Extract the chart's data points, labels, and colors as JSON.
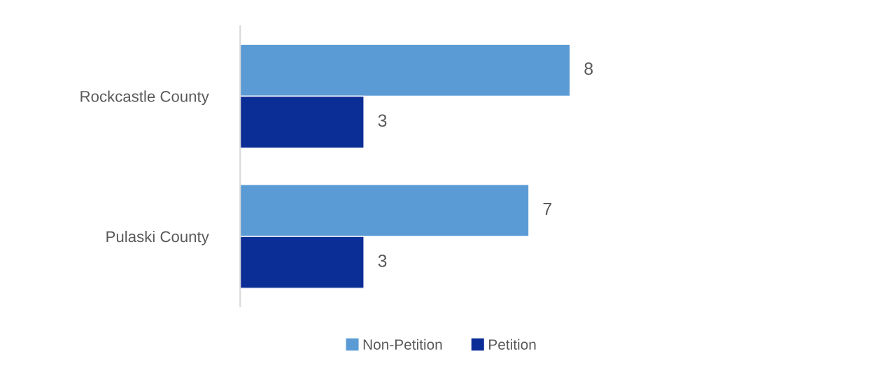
{
  "chart_data": {
    "type": "bar",
    "orientation": "horizontal",
    "categories": [
      "Rockcastle County",
      "Pulaski County"
    ],
    "series": [
      {
        "name": "Non-Petition",
        "color": "#5b9bd5",
        "values": [
          8,
          7
        ]
      },
      {
        "name": "Petition",
        "color": "#0b2d96",
        "values": [
          3,
          3
        ]
      }
    ],
    "data_labels": true,
    "legend": "bottom",
    "grid": false,
    "tick_labels": "y"
  }
}
